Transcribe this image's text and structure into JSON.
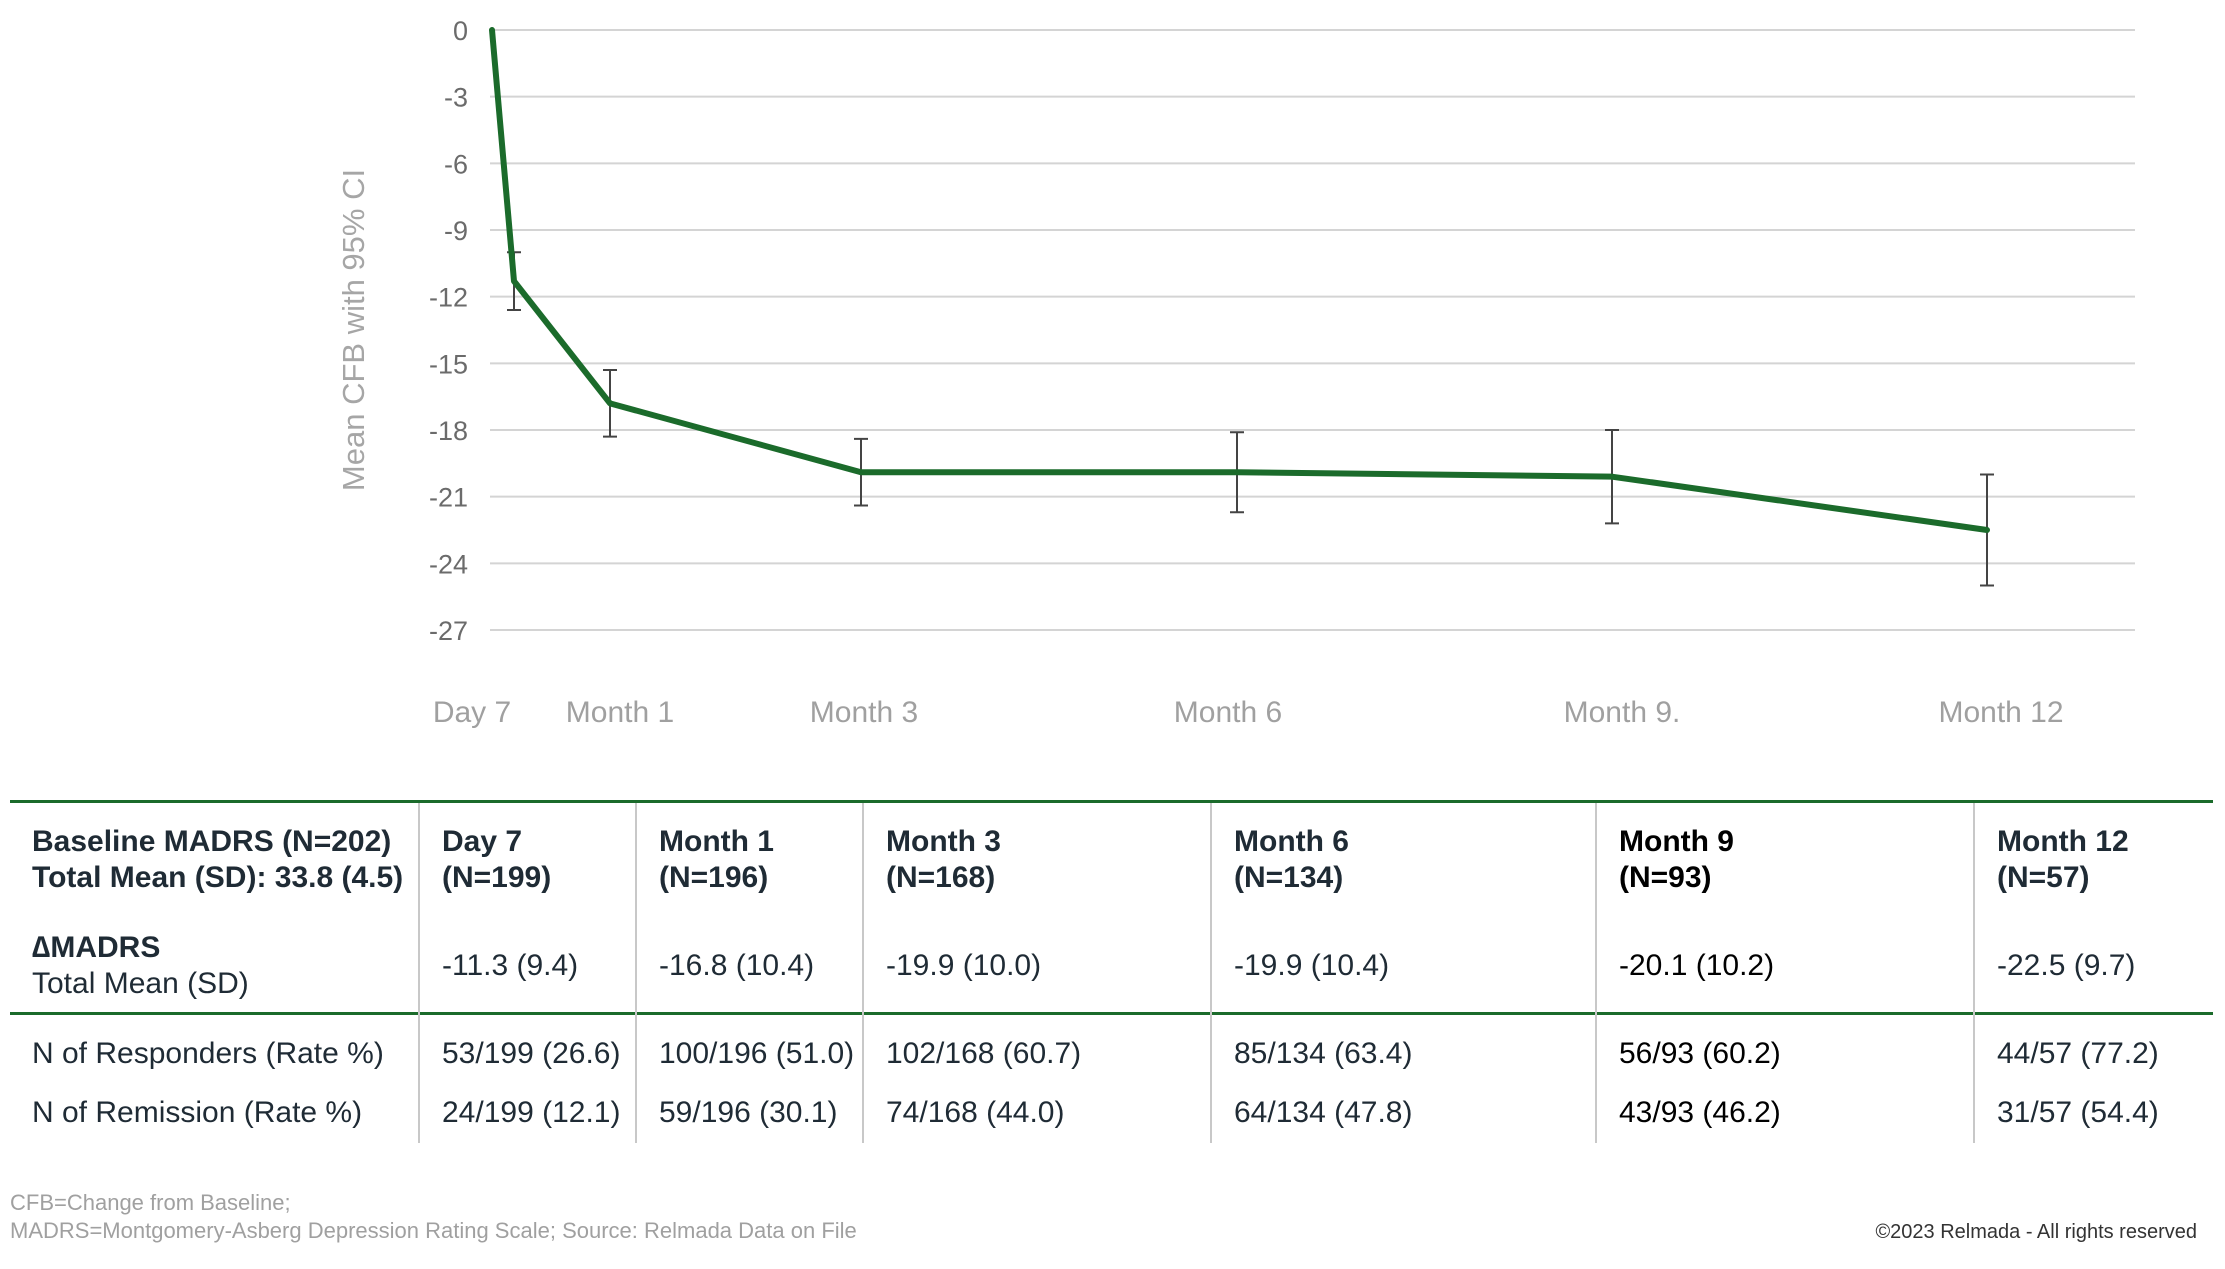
{
  "chart_data": {
    "type": "line",
    "ylabel": "Mean CFB with 95% CI",
    "ylim": [
      -27,
      0
    ],
    "yticks": [
      0,
      -3,
      -6,
      -9,
      -12,
      -15,
      -18,
      -21,
      -24,
      -27
    ],
    "xtick_labels": [
      "Day 7",
      "Month 1",
      "Month 3",
      "Month 6",
      "Month 9.",
      "Month 12"
    ],
    "grid": true,
    "series": [
      {
        "color": "#1b6b2b",
        "points": [
          {
            "x": "Baseline",
            "y": 0
          },
          {
            "x": "Day 7",
            "y": -11.3,
            "ci": [
              -12.6,
              -10.0
            ]
          },
          {
            "x": "Month 1",
            "y": -16.8,
            "ci": [
              -18.3,
              -15.3
            ]
          },
          {
            "x": "Month 3",
            "y": -19.9,
            "ci": [
              -21.4,
              -18.4
            ]
          },
          {
            "x": "Month 6",
            "y": -19.9,
            "ci": [
              -21.7,
              -18.1
            ]
          },
          {
            "x": "Month 9",
            "y": -20.1,
            "ci": [
              -22.2,
              -18.0
            ]
          },
          {
            "x": "Month 12",
            "y": -22.5,
            "ci": [
              -25.0,
              -20.0
            ]
          }
        ]
      }
    ]
  },
  "table": {
    "header_cell": {
      "line1": "Baseline MADRS (N=202)",
      "line2": "Total Mean (SD): 33.8 (4.5)"
    },
    "columns": [
      {
        "title": "Day 7",
        "n": "(N=199)"
      },
      {
        "title": "Month 1",
        "n": "(N=196)"
      },
      {
        "title": "Month 3",
        "n": "(N=168)"
      },
      {
        "title": "Month 6",
        "n": "(N=134)"
      },
      {
        "title": "Month 9",
        "n": "(N=93)"
      },
      {
        "title": "Month 12",
        "n": "(N=57)"
      }
    ],
    "rows": [
      {
        "label1": "∆MADRS",
        "label2": "Total Mean (SD)",
        "values": [
          "-11.3 (9.4)",
          "-16.8 (10.4)",
          "-19.9 (10.0)",
          "-19.9 (10.4)",
          "-20.1 (10.2)",
          "-22.5 (9.7)"
        ]
      },
      {
        "label1": "N of Responders (Rate %)",
        "values": [
          "53/199 (26.6)",
          "100/196 (51.0)",
          "102/168 (60.7)",
          "85/134 (63.4)",
          "56/93 (60.2)",
          "44/57 (77.2)"
        ]
      },
      {
        "label1": "N of Remission (Rate %)",
        "values": [
          "24/199 (12.1)",
          "59/196 (30.1)",
          "74/168 (44.0)",
          "64/134 (47.8)",
          "43/93 (46.2)",
          "31/57 (54.4)"
        ]
      }
    ]
  },
  "footnotes": {
    "line1": "CFB=Change from Baseline;",
    "line2": "MADRS=Montgomery-Asberg Depression Rating Scale; Source: Relmada Data on File"
  },
  "copyright": "©2023 Relmada - All rights reserved"
}
